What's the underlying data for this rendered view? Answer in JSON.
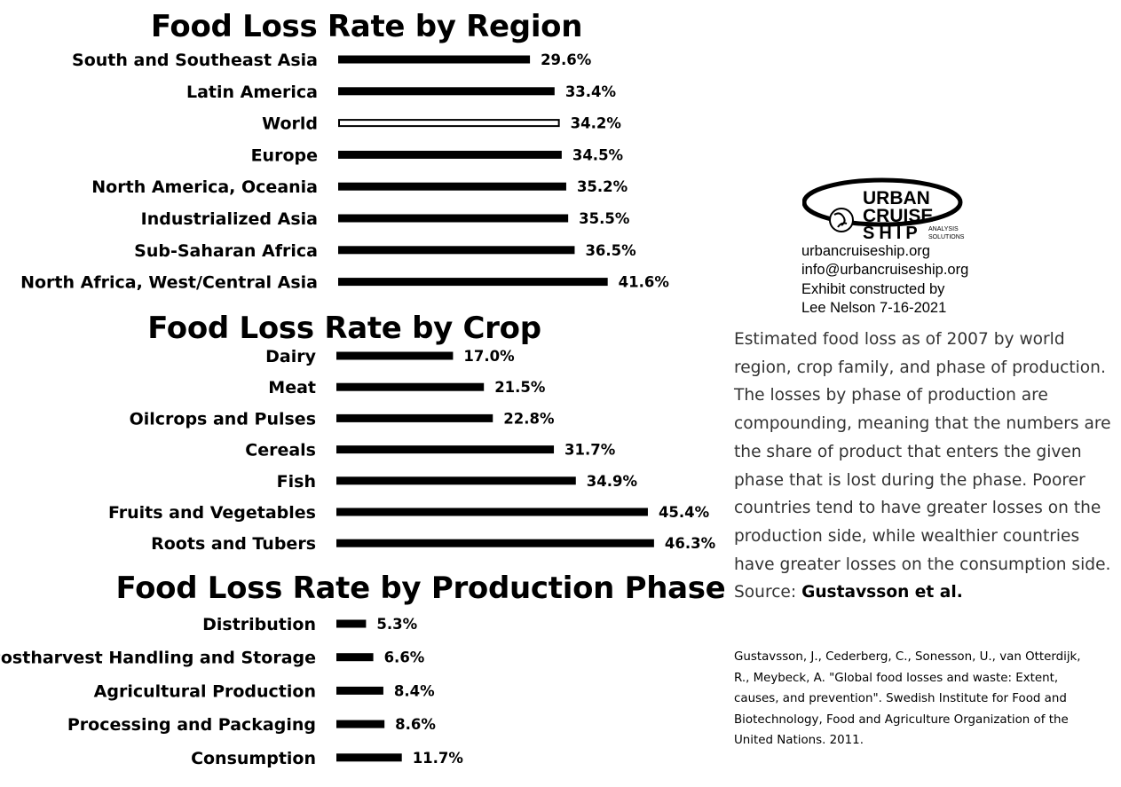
{
  "chart_data": [
    {
      "type": "bar",
      "orientation": "horizontal",
      "title": "Food Loss Rate by Region",
      "categories": [
        "South and Southeast Asia",
        "Latin America",
        "World",
        "Europe",
        "North America, Oceania",
        "Industrialized Asia",
        "Sub-Saharan Africa",
        "North Africa, West/Central Asia"
      ],
      "values": [
        29.6,
        33.4,
        34.2,
        34.5,
        35.2,
        35.5,
        36.5,
        41.6
      ],
      "value_labels": [
        "29.6%",
        "33.4%",
        "34.2%",
        "34.5%",
        "35.2%",
        "35.5%",
        "36.5%",
        "41.6%"
      ],
      "highlight": "World",
      "unit": "%"
    },
    {
      "type": "bar",
      "orientation": "horizontal",
      "title": "Food Loss Rate by Crop",
      "categories": [
        "Dairy",
        "Meat",
        "Oilcrops and Pulses",
        "Cereals",
        "Fish",
        "Fruits and Vegetables",
        "Roots and Tubers"
      ],
      "values": [
        17.0,
        21.5,
        22.8,
        31.7,
        34.9,
        45.4,
        46.3
      ],
      "value_labels": [
        "17.0%",
        "21.5%",
        "22.8%",
        "31.7%",
        "34.9%",
        "45.4%",
        "46.3%"
      ],
      "unit": "%"
    },
    {
      "type": "bar",
      "orientation": "horizontal",
      "title": "Food Loss Rate by Production Phase",
      "categories": [
        "Distribution",
        "Postharvest Handling and Storage",
        "Agricultural Production",
        "Processing and Packaging",
        "Consumption"
      ],
      "values": [
        5.3,
        6.6,
        8.4,
        8.6,
        11.7
      ],
      "value_labels": [
        "5.3%",
        "6.6%",
        "8.4%",
        "8.6%",
        "11.7%"
      ],
      "unit": "%"
    }
  ],
  "logo": {
    "name": "URBAN CRUISE SHIP",
    "line1": "URBAN",
    "line2": "CRUISE",
    "line3": "SHIP",
    "tagline1": "ANALYSIS",
    "tagline2": "SOLUTIONS"
  },
  "contact": {
    "website": "urbancruiseship.org",
    "email": "info@urbancruiseship.org",
    "credit_line1": "Exhibit constructed by",
    "credit_line2": "Lee Nelson 7-16-2021"
  },
  "description": {
    "text": "Estimated food loss as of 2007 by world region, crop family, and phase of production. The losses by phase of production are compounding, meaning that the numbers are the share of product that enters the given phase that is lost during the phase. Poorer countries tend to have greater losses on the production side, while wealthier countries have greater losses on the consumption side.",
    "source_prefix": "Source:",
    "source_name": "Gustavsson et al."
  },
  "reference": "Gustavsson, J., Cederberg, C., Sonesson, U., van Otterdijk, R., Meybeck, A. \"Global food losses and waste: Extent, causes, and prevention\". Swedish Institute for Food and Biotechnology, Food and Agriculture Organization of the United Nations. 2011.",
  "colors": {
    "bar": "#000000",
    "highlight_fill": "#ffffff",
    "text": "#000000",
    "description_text": "#333333"
  }
}
